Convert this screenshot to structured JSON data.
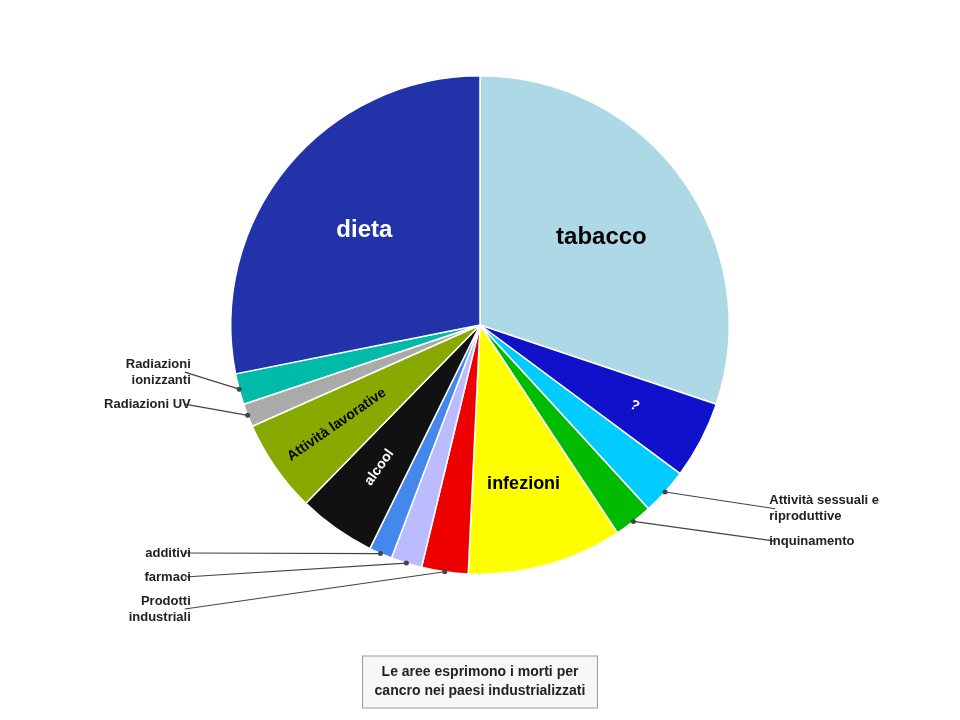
{
  "chart_data": {
    "type": "pie",
    "categories": [
      "tabacco",
      "?",
      "Attività sessuali e\nriproduttive",
      "inquinamento",
      "infezioni",
      "Prodotti\nindustriali",
      "farmaci",
      "additivi",
      "alcool",
      "Attività lavorative",
      "Radiazioni UV",
      "Radiazioni\nionizzanti",
      "dieta"
    ],
    "values": [
      30,
      5,
      3,
      2.5,
      10,
      3,
      2,
      1.5,
      5,
      6,
      1.5,
      2,
      28
    ],
    "colors": [
      "#ADD8E6",
      "#1111CC",
      "#00CCFF",
      "#00BB00",
      "#FFFF00",
      "#EE0000",
      "#BBBBFF",
      "#4488EE",
      "#111111",
      "#88AA00",
      "#AAAAAA",
      "#00BBAA",
      "#2233AA"
    ],
    "annotations": [
      "Le aree esprimono i morti per\ncancro nei paesi industrializzati"
    ]
  }
}
